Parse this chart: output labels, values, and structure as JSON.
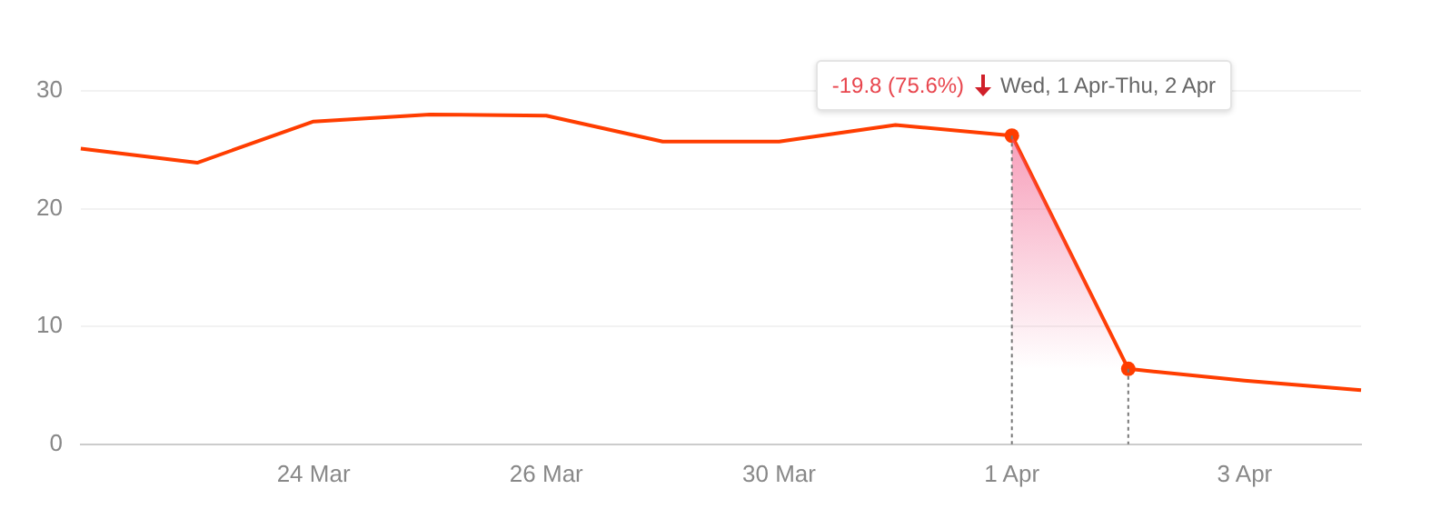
{
  "chart_data": {
    "type": "line",
    "categories": [
      null,
      null,
      "24 Mar",
      null,
      "26 Mar",
      null,
      "30 Mar",
      null,
      "1 Apr",
      null,
      "3 Apr",
      null
    ],
    "series": [
      {
        "color": "#ff3d00",
        "values": [
          25.1,
          23.9,
          27.4,
          28.0,
          27.9,
          25.7,
          25.7,
          27.1,
          26.2,
          6.4,
          5.4,
          4.6
        ]
      }
    ],
    "ylim": [
      0,
      30
    ],
    "yticks": [
      0,
      10,
      20,
      30
    ],
    "grid": "y",
    "legend": false,
    "marker": "none",
    "line_style": "solid",
    "annotations": [
      {
        "text": "-19.8 (75.6%)",
        "x": "1 Apr",
        "y": 26.2
      },
      "Wed, 1 Apr-Thu, 2 Apr"
    ]
  }
}
